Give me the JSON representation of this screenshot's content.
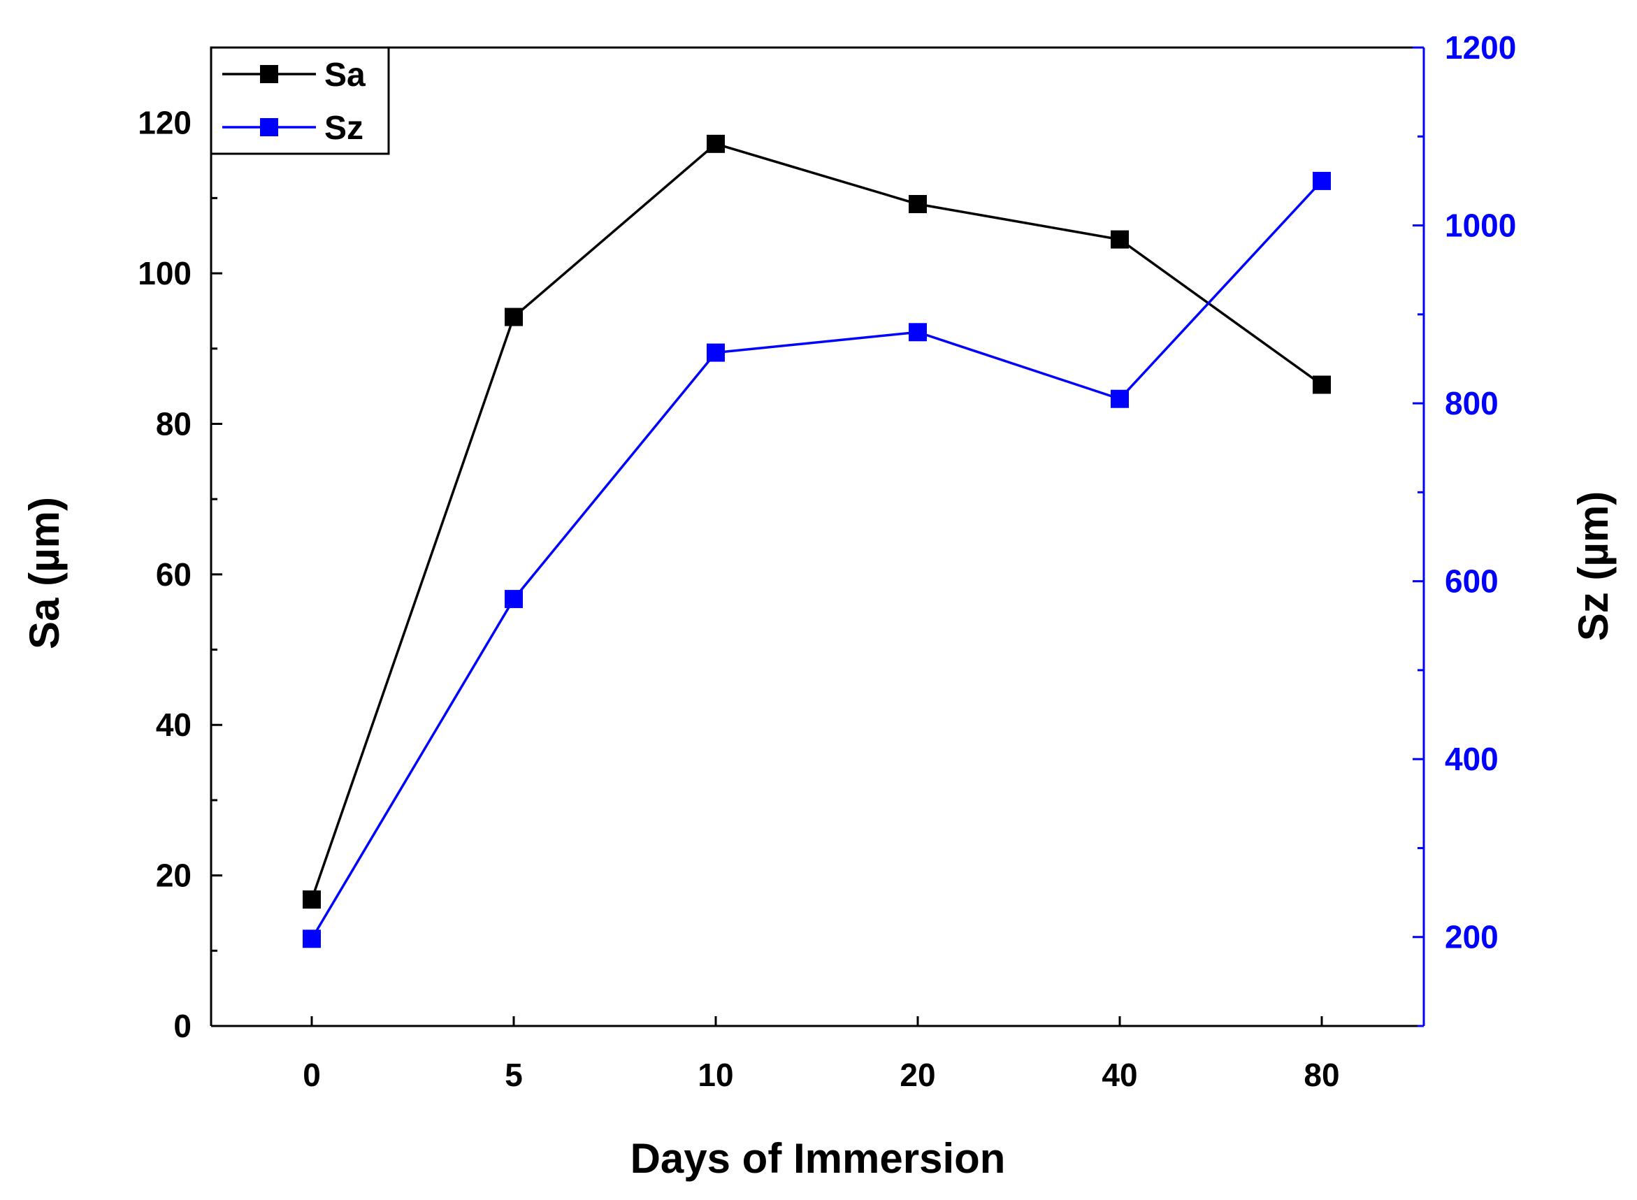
{
  "chart_data": {
    "type": "line",
    "title": "",
    "xlabel": "Days of Immersion",
    "categories": [
      "0",
      "5",
      "10",
      "20",
      "40",
      "80"
    ],
    "y_left": {
      "label": "Sa (µm)",
      "range": [
        0,
        130
      ],
      "ticks": [
        0,
        20,
        40,
        60,
        80,
        100,
        120
      ],
      "color": "#000000"
    },
    "y_right": {
      "label": "Sz (µm)",
      "range": [
        100,
        1200
      ],
      "ticks": [
        200,
        400,
        600,
        800,
        1000,
        1200
      ],
      "color": "#0000ff"
    },
    "series": [
      {
        "name": "Sa",
        "axis": "left",
        "color": "#000000",
        "values": [
          16.8,
          94.2,
          117.2,
          109.2,
          104.5,
          85.2
        ]
      },
      {
        "name": "Sz",
        "axis": "right",
        "color": "#0000ff",
        "values": [
          198,
          580,
          857,
          880,
          805,
          1050
        ]
      }
    ],
    "legend": {
      "position": "top-left"
    },
    "grid": false
  }
}
